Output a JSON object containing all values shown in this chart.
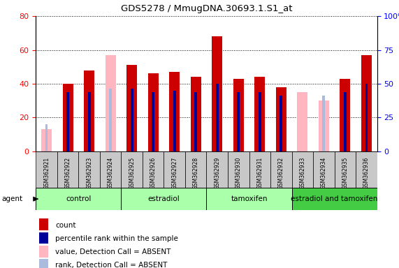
{
  "title": "GDS5278 / MmugDNA.30693.1.S1_at",
  "samples": [
    "GSM362921",
    "GSM362922",
    "GSM362923",
    "GSM362924",
    "GSM362925",
    "GSM362926",
    "GSM362927",
    "GSM362928",
    "GSM362929",
    "GSM362930",
    "GSM362931",
    "GSM362932",
    "GSM362933",
    "GSM362934",
    "GSM362935",
    "GSM362936"
  ],
  "count": [
    null,
    40,
    48,
    null,
    51,
    46,
    47,
    44,
    68,
    43,
    44,
    38,
    null,
    null,
    43,
    57
  ],
  "rank": [
    null,
    35,
    35,
    null,
    37,
    35,
    36,
    35,
    40,
    35,
    35,
    33,
    null,
    31,
    35,
    40
  ],
  "count_absent": [
    13,
    null,
    null,
    57,
    null,
    null,
    null,
    null,
    null,
    null,
    null,
    null,
    35,
    30,
    null,
    null
  ],
  "rank_absent": [
    16,
    null,
    null,
    37,
    null,
    null,
    null,
    null,
    null,
    null,
    null,
    null,
    null,
    33,
    null,
    null
  ],
  "group_defs": [
    {
      "name": "control",
      "cols": [
        0,
        1,
        2,
        3
      ],
      "color": "#AAFFAA"
    },
    {
      "name": "estradiol",
      "cols": [
        4,
        5,
        6,
        7
      ],
      "color": "#AAFFAA"
    },
    {
      "name": "tamoxifen",
      "cols": [
        8,
        9,
        10,
        11
      ],
      "color": "#AAFFAA"
    },
    {
      "name": "estradiol and tamoxifen",
      "cols": [
        12,
        13,
        14,
        15
      ],
      "color": "#44CC44"
    }
  ],
  "ylim_left": [
    0,
    80
  ],
  "ylim_right": [
    0,
    100
  ],
  "yticks_left": [
    0,
    20,
    40,
    60,
    80
  ],
  "yticks_right": [
    0,
    25,
    50,
    75,
    100
  ],
  "color_count": "#CC0000",
  "color_rank": "#000099",
  "color_count_absent": "#FFB6C1",
  "color_rank_absent": "#AABBDD",
  "bar_width": 0.5,
  "rank_bar_width": 0.12,
  "legend_items": [
    {
      "label": "count",
      "color": "#CC0000"
    },
    {
      "label": "percentile rank within the sample",
      "color": "#000099"
    },
    {
      "label": "value, Detection Call = ABSENT",
      "color": "#FFB6C1"
    },
    {
      "label": "rank, Detection Call = ABSENT",
      "color": "#AABBDD"
    }
  ],
  "xlabel_gray": "#C8C8C8",
  "group_border_color": "#000000",
  "fig_bg": "#FFFFFF"
}
